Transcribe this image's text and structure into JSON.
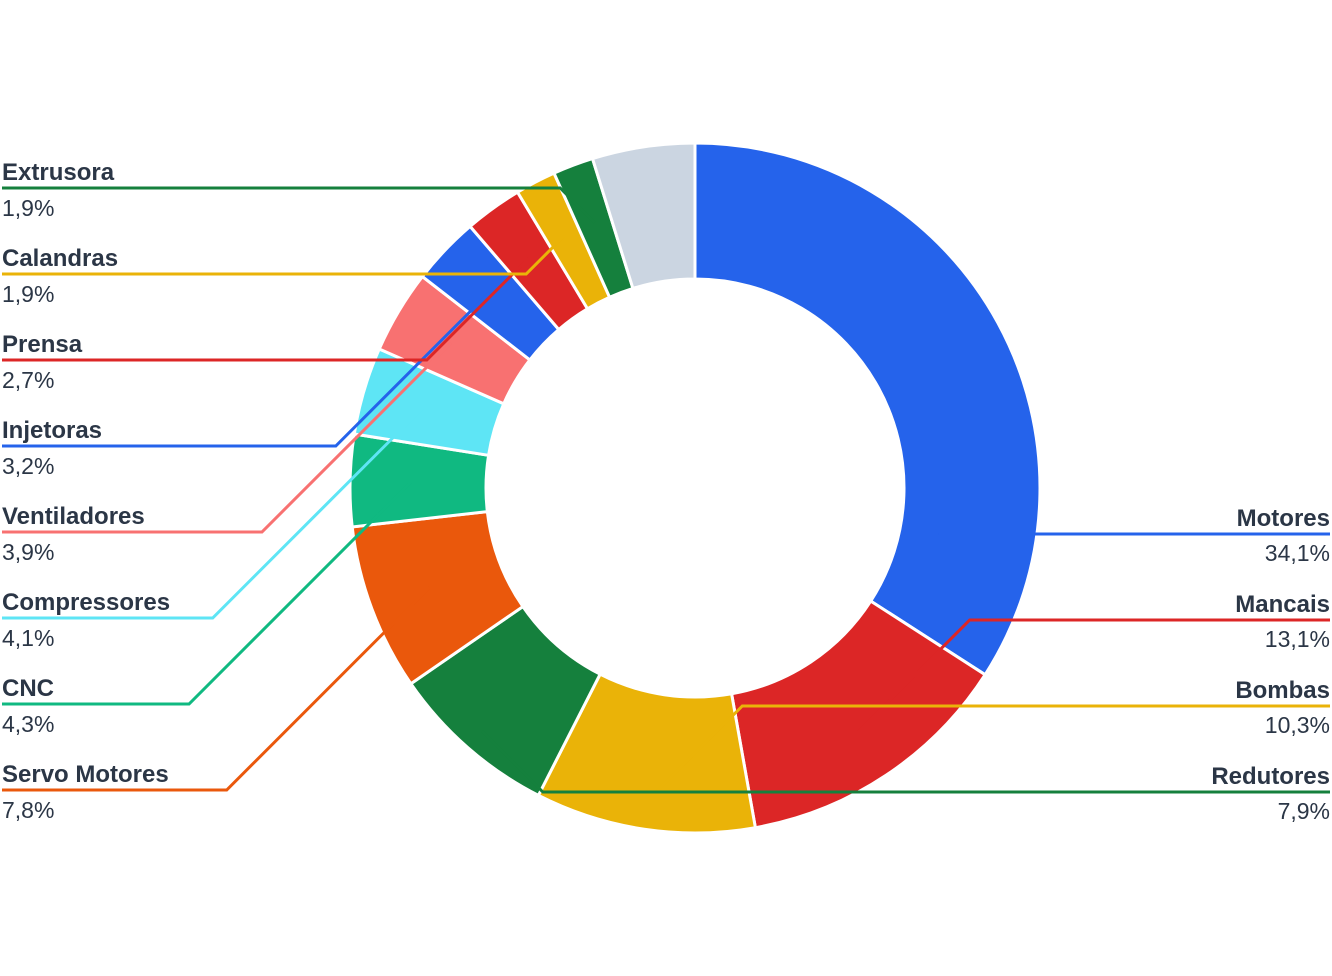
{
  "chart_data": {
    "type": "pie",
    "variant": "donut",
    "legend": "callout-labels",
    "slices": [
      {
        "name": "Motores",
        "value": 34.1,
        "label": "34,1%",
        "color": "#2563eb",
        "side": "right"
      },
      {
        "name": "Mancais",
        "value": 13.1,
        "label": "13,1%",
        "color": "#dc2626",
        "side": "right"
      },
      {
        "name": "Bombas",
        "value": 10.3,
        "label": "10,3%",
        "color": "#eab308",
        "side": "right"
      },
      {
        "name": "Redutores",
        "value": 7.9,
        "label": "7,9%",
        "color": "#15803d",
        "side": "right"
      },
      {
        "name": "Servo Motores",
        "value": 7.8,
        "label": "7,8%",
        "color": "#ea580c",
        "side": "left"
      },
      {
        "name": "CNC",
        "value": 4.3,
        "label": "4,3%",
        "color": "#10b981",
        "side": "left"
      },
      {
        "name": "Compressores",
        "value": 4.1,
        "label": "4,1%",
        "color": "#5ee5f5",
        "side": "left"
      },
      {
        "name": "Ventiladores",
        "value": 3.9,
        "label": "3,9%",
        "color": "#f87171",
        "side": "left"
      },
      {
        "name": "Injetoras",
        "value": 3.2,
        "label": "3,2%",
        "color": "#2563eb",
        "side": "left"
      },
      {
        "name": "Prensa",
        "value": 2.7,
        "label": "2,7%",
        "color": "#dc2626",
        "side": "left"
      },
      {
        "name": "Calandras",
        "value": 1.9,
        "label": "1,9%",
        "color": "#eab308",
        "side": "left"
      },
      {
        "name": "Extrusora",
        "value": 1.9,
        "label": "1,9%",
        "color": "#15803d",
        "side": "left"
      },
      {
        "name": "",
        "value": 4.8,
        "label": "",
        "color": "#cbd5e1",
        "side": "none"
      }
    ]
  }
}
